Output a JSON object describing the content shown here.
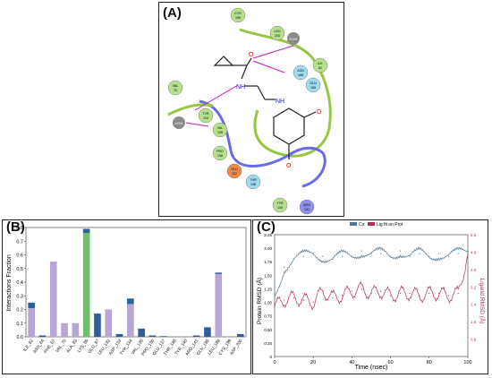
{
  "panels": {
    "a": {
      "label": "(A)"
    },
    "b": {
      "label": "(B)"
    },
    "c": {
      "label": "(C)"
    }
  },
  "diagram": {
    "residues": [
      {
        "id": "CYS 199",
        "color": "#b5e08e"
      },
      {
        "id": "LEU 200",
        "color": "#b5e08e"
      },
      {
        "id": "ASN 188",
        "color": "#9ddcef"
      },
      {
        "id": "GLN 185",
        "color": "#9ddcef"
      },
      {
        "id": "ILE 62",
        "color": "#b5e08e"
      },
      {
        "id": "VAL 70",
        "color": "#b5e08e"
      },
      {
        "id": "TYR 134",
        "color": "#b5e08e"
      },
      {
        "id": "VAL 135",
        "color": "#b5e08e"
      },
      {
        "id": "PRO 136",
        "color": "#b5e08e"
      },
      {
        "id": "GLU 137",
        "color": "#f08a4b"
      },
      {
        "id": "THR 138",
        "color": "#9ddcef"
      },
      {
        "id": "TYR 140",
        "color": "#b5e08e"
      },
      {
        "id": "ARG 141",
        "color": "#8e8ff0"
      }
    ],
    "waters": [
      "HOH",
      "HOH"
    ],
    "atom_labels": [
      "O",
      "NH",
      "NH",
      "O",
      "O"
    ]
  },
  "chart_data": [
    {
      "type": "bar",
      "ylabel": "Interactions Fraction",
      "ylim": [
        0,
        0.8
      ],
      "yticks": [
        0.0,
        0.1,
        0.2,
        0.3,
        0.4,
        0.5,
        0.6,
        0.7,
        0.8
      ],
      "categories": [
        "ILE_62",
        "ASN_64",
        "PHE_67",
        "VAL_70",
        "ALA_83",
        "LYS_85",
        "GLU_87",
        "LEU_132",
        "ASP_133",
        "TYR_134",
        "VAL_135",
        "PRO_136",
        "GLU_137",
        "THR_138",
        "TYR_140",
        "ARG_141",
        "GLN_185",
        "LEU_188",
        "CYS_199",
        "ASP_200"
      ],
      "series": [
        {
          "color": "#b7a5d3",
          "values": [
            0.21,
            0,
            0.55,
            0.1,
            0.1,
            0,
            0,
            0.2,
            0,
            0.24,
            0,
            0,
            0,
            0,
            0,
            0,
            0,
            0.46,
            0,
            0
          ]
        },
        {
          "color": "#6fbf6a",
          "values": [
            0,
            0,
            0,
            0,
            0,
            0.76,
            0,
            0,
            0,
            0,
            0,
            0,
            0,
            0,
            0,
            0,
            0,
            0,
            0,
            0
          ]
        },
        {
          "color": "#2d5f9e",
          "values": [
            0.04,
            0.01,
            0,
            0,
            0,
            0.03,
            0.17,
            0,
            0.02,
            0.04,
            0.06,
            0.01,
            0.005,
            0,
            0,
            0.01,
            0.07,
            0.01,
            0,
            0.02
          ]
        }
      ]
    },
    {
      "type": "line",
      "xlabel": "Time (nsec)",
      "ylabel_left": "Protein RMSD (Å)",
      "ylabel_right": "Ligand RMSD (Å)",
      "legend": [
        "Cα",
        "Lig fit on Prot"
      ],
      "legend_placement": "top-center",
      "xlim": [
        0,
        100
      ],
      "xticks": [
        0,
        20,
        40,
        60,
        80,
        100
      ],
      "ylim_left": [
        0,
        2.25
      ],
      "yticks_left": [
        "0",
        "0.25",
        "0.50",
        "0.75",
        "1.00",
        "1.25",
        "1.50",
        "1.75",
        "2.00",
        "2.25"
      ],
      "ylim_right": [
        0,
        5.6
      ],
      "yticks_right": [
        "0.8",
        "1.6",
        "2.4",
        "3.2",
        "4.0",
        "4.8",
        "5.6"
      ],
      "series": [
        {
          "name": "Cα",
          "axis": "left",
          "color": "#4f7592",
          "x": [
            0,
            5,
            10,
            15,
            20,
            25,
            30,
            35,
            40,
            45,
            50,
            55,
            60,
            65,
            70,
            75,
            80,
            85,
            90,
            95,
            100
          ],
          "y": [
            1.1,
            1.65,
            1.8,
            1.85,
            1.9,
            1.85,
            1.8,
            1.85,
            1.85,
            1.95,
            1.9,
            1.9,
            1.85,
            1.95,
            1.85,
            1.9,
            1.85,
            1.9,
            1.85,
            1.9,
            1.95
          ]
        },
        {
          "name": "Lig fit on Prot",
          "axis": "right",
          "color": "#b0305a",
          "x": [
            0,
            5,
            10,
            15,
            20,
            25,
            30,
            35,
            40,
            45,
            50,
            55,
            60,
            65,
            70,
            75,
            80,
            85,
            90,
            95,
            100
          ],
          "y": [
            2.3,
            2.6,
            2.7,
            2.6,
            2.5,
            3.0,
            2.7,
            2.8,
            3.0,
            3.1,
            2.9,
            3.0,
            2.8,
            2.9,
            2.9,
            2.8,
            2.9,
            2.9,
            2.8,
            2.9,
            4.7
          ]
        }
      ]
    }
  ]
}
